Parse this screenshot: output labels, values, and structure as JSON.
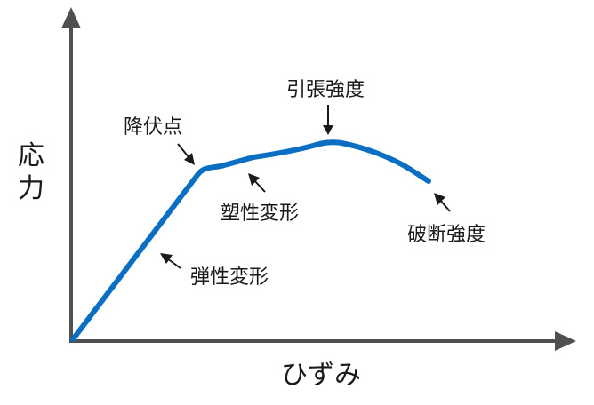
{
  "colors": {
    "axis": "#505050",
    "curve": "#0a6fc2",
    "text": "#1a1a1a",
    "annotation_arrow": "#1a1a1a"
  },
  "axes": {
    "y_label": "応力",
    "x_label": "ひずみ"
  },
  "annotations": {
    "tensile_strength": "引張強度",
    "yield_point": "降伏点",
    "plastic_deformation": "塑性変形",
    "fracture_strength": "破断強度",
    "elastic_deformation": "弾性変形"
  }
}
